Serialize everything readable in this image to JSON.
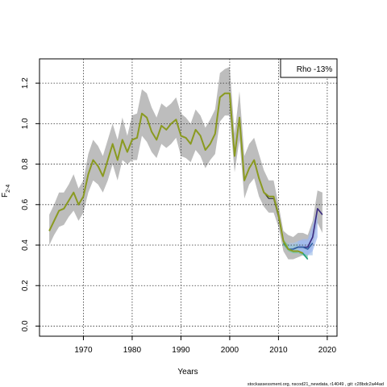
{
  "chart_data": {
    "type": "line",
    "title": "",
    "xlabel": "Years",
    "ylabel_main": "F",
    "ylabel_sub": "2-4",
    "xlim": [
      1961,
      2022
    ],
    "ylim": [
      -0.05,
      1.32
    ],
    "xticks": [
      1970,
      1980,
      1990,
      2000,
      2010,
      2020
    ],
    "yticks": [
      0.0,
      0.2,
      0.4,
      0.6,
      0.8,
      1.0,
      1.2
    ],
    "grid": true,
    "legend_position": "top-right",
    "legend_text": "Rho -13%",
    "band": {
      "x": [
        1963,
        1964,
        1965,
        1966,
        1967,
        1968,
        1969,
        1970,
        1971,
        1972,
        1973,
        1974,
        1975,
        1976,
        1977,
        1978,
        1979,
        1980,
        1981,
        1982,
        1983,
        1984,
        1985,
        1986,
        1987,
        1988,
        1989,
        1990,
        1991,
        1992,
        1993,
        1994,
        1995,
        1996,
        1997,
        1998,
        1999,
        2000,
        2001,
        2002,
        2003,
        2004,
        2005,
        2006,
        2007,
        2008,
        2009,
        2010,
        2011,
        2012,
        2013,
        2014,
        2015,
        2016,
        2017,
        2018,
        2019
      ],
      "upper": [
        0.55,
        0.6,
        0.66,
        0.66,
        0.7,
        0.75,
        0.68,
        0.72,
        0.85,
        0.92,
        0.89,
        0.84,
        0.92,
        1.0,
        0.92,
        1.03,
        0.94,
        1.04,
        1.05,
        1.17,
        1.15,
        1.08,
        1.03,
        1.1,
        1.08,
        1.1,
        1.13,
        1.05,
        1.03,
        1.0,
        1.07,
        1.04,
        0.98,
        1.02,
        1.07,
        1.25,
        1.27,
        1.28,
        0.95,
        1.16,
        0.84,
        0.9,
        0.93,
        0.85,
        0.77,
        0.72,
        0.72,
        0.6,
        0.47,
        0.45,
        0.44,
        0.46,
        0.46,
        0.45,
        0.52,
        0.67,
        0.66
      ],
      "lower": [
        0.4,
        0.45,
        0.49,
        0.5,
        0.54,
        0.57,
        0.52,
        0.56,
        0.66,
        0.72,
        0.7,
        0.66,
        0.72,
        0.8,
        0.72,
        0.82,
        0.8,
        0.82,
        0.82,
        0.94,
        0.91,
        0.86,
        0.83,
        0.9,
        0.88,
        0.9,
        0.93,
        0.84,
        0.83,
        0.81,
        0.87,
        0.84,
        0.78,
        0.82,
        0.85,
        1.01,
        1.04,
        1.04,
        0.76,
        0.92,
        0.63,
        0.7,
        0.73,
        0.64,
        0.59,
        0.56,
        0.56,
        0.49,
        0.37,
        0.33,
        0.33,
        0.34,
        0.35,
        0.35,
        0.39,
        0.51,
        0.46
      ]
    },
    "retro_bands": [
      {
        "x": [
          2011,
          2012,
          2013,
          2014,
          2015,
          2016
        ],
        "upper": [
          0.43,
          0.4,
          0.4,
          0.41,
          0.41,
          0.39
        ],
        "lower": [
          0.4,
          0.37,
          0.36,
          0.36,
          0.35,
          0.33
        ],
        "color": "#70c8a0"
      },
      {
        "x": [
          2012,
          2013,
          2014,
          2015,
          2016,
          2017
        ],
        "upper": [
          0.41,
          0.41,
          0.42,
          0.42,
          0.42,
          0.46
        ],
        "lower": [
          0.38,
          0.37,
          0.37,
          0.36,
          0.35,
          0.35
        ],
        "color": "#a8c4e8"
      },
      {
        "x": [
          2014,
          2015,
          2016,
          2017,
          2018
        ],
        "upper": [
          0.42,
          0.43,
          0.43,
          0.5,
          0.58
        ],
        "lower": [
          0.36,
          0.36,
          0.35,
          0.37,
          0.44
        ],
        "color": "#a0b8f0"
      }
    ],
    "series": [
      {
        "color": "#1a1a1a",
        "width": 1.0,
        "x": [
          1963,
          1964,
          1965,
          1966,
          1967,
          1968,
          1969,
          1970,
          1971,
          1972,
          1973,
          1974,
          1975,
          1976,
          1977,
          1978,
          1979,
          1980,
          1981,
          1982,
          1983,
          1984,
          1985,
          1986,
          1987,
          1988,
          1989,
          1990,
          1991,
          1992,
          1993,
          1994,
          1995,
          1996,
          1997,
          1998,
          1999,
          2000,
          2001,
          2002,
          2003,
          2004,
          2005,
          2006,
          2007,
          2008,
          2009,
          2010,
          2011,
          2012,
          2013,
          2014,
          2015,
          2016,
          2017,
          2018,
          2019
        ],
        "values": [
          0.47,
          0.52,
          0.57,
          0.58,
          0.62,
          0.66,
          0.6,
          0.64,
          0.75,
          0.82,
          0.79,
          0.74,
          0.82,
          0.9,
          0.82,
          0.92,
          0.86,
          0.92,
          0.93,
          1.05,
          1.03,
          0.96,
          0.92,
          0.99,
          0.97,
          1.0,
          1.02,
          0.94,
          0.93,
          0.9,
          0.97,
          0.94,
          0.87,
          0.9,
          0.95,
          1.13,
          1.15,
          1.15,
          0.84,
          1.03,
          0.72,
          0.78,
          0.82,
          0.73,
          0.66,
          0.63,
          0.63,
          0.54,
          0.42,
          0.38,
          0.38,
          0.39,
          0.39,
          0.39,
          0.44,
          0.58,
          0.55
        ]
      },
      {
        "color": "#3a2a80",
        "width": 1.6,
        "x": [
          2013,
          2014,
          2015,
          2016,
          2017,
          2018,
          2019
        ],
        "values": [
          0.38,
          0.39,
          0.39,
          0.39,
          0.44,
          0.58,
          0.55
        ]
      },
      {
        "color": "#3060a0",
        "width": 1.6,
        "x": [
          2012,
          2013,
          2014,
          2015,
          2016,
          2017
        ],
        "values": [
          0.38,
          0.38,
          0.39,
          0.39,
          0.38,
          0.41
        ]
      },
      {
        "color": "#1f9a7a",
        "width": 1.6,
        "x": [
          2011,
          2012,
          2013,
          2014,
          2015,
          2016
        ],
        "values": [
          0.41,
          0.38,
          0.37,
          0.37,
          0.36,
          0.33
        ]
      },
      {
        "color": "#8a9a20",
        "width": 2.0,
        "x": [
          1963,
          1964,
          1965,
          1966,
          1967,
          1968,
          1969,
          1970,
          1971,
          1972,
          1973,
          1974,
          1975,
          1976,
          1977,
          1978,
          1979,
          1980,
          1981,
          1982,
          1983,
          1984,
          1985,
          1986,
          1987,
          1988,
          1989,
          1990,
          1991,
          1992,
          1993,
          1994,
          1995,
          1996,
          1997,
          1998,
          1999,
          2000,
          2001,
          2002,
          2003,
          2004,
          2005,
          2006,
          2007,
          2008,
          2009,
          2010,
          2011,
          2012,
          2013,
          2014,
          2015
        ],
        "values": [
          0.47,
          0.52,
          0.57,
          0.58,
          0.62,
          0.66,
          0.6,
          0.64,
          0.75,
          0.82,
          0.79,
          0.74,
          0.82,
          0.9,
          0.82,
          0.92,
          0.86,
          0.92,
          0.93,
          1.05,
          1.03,
          0.96,
          0.92,
          0.99,
          0.97,
          1.0,
          1.02,
          0.94,
          0.93,
          0.9,
          0.97,
          0.94,
          0.87,
          0.9,
          0.95,
          1.13,
          1.15,
          1.15,
          0.84,
          1.03,
          0.72,
          0.78,
          0.82,
          0.73,
          0.66,
          0.64,
          0.64,
          0.55,
          0.42,
          0.38,
          0.37,
          0.37,
          0.36
        ]
      }
    ]
  },
  "footer_text": "stockassessment.org, nscod21_newdata, r14049 , git: c28bdc2a44ad"
}
